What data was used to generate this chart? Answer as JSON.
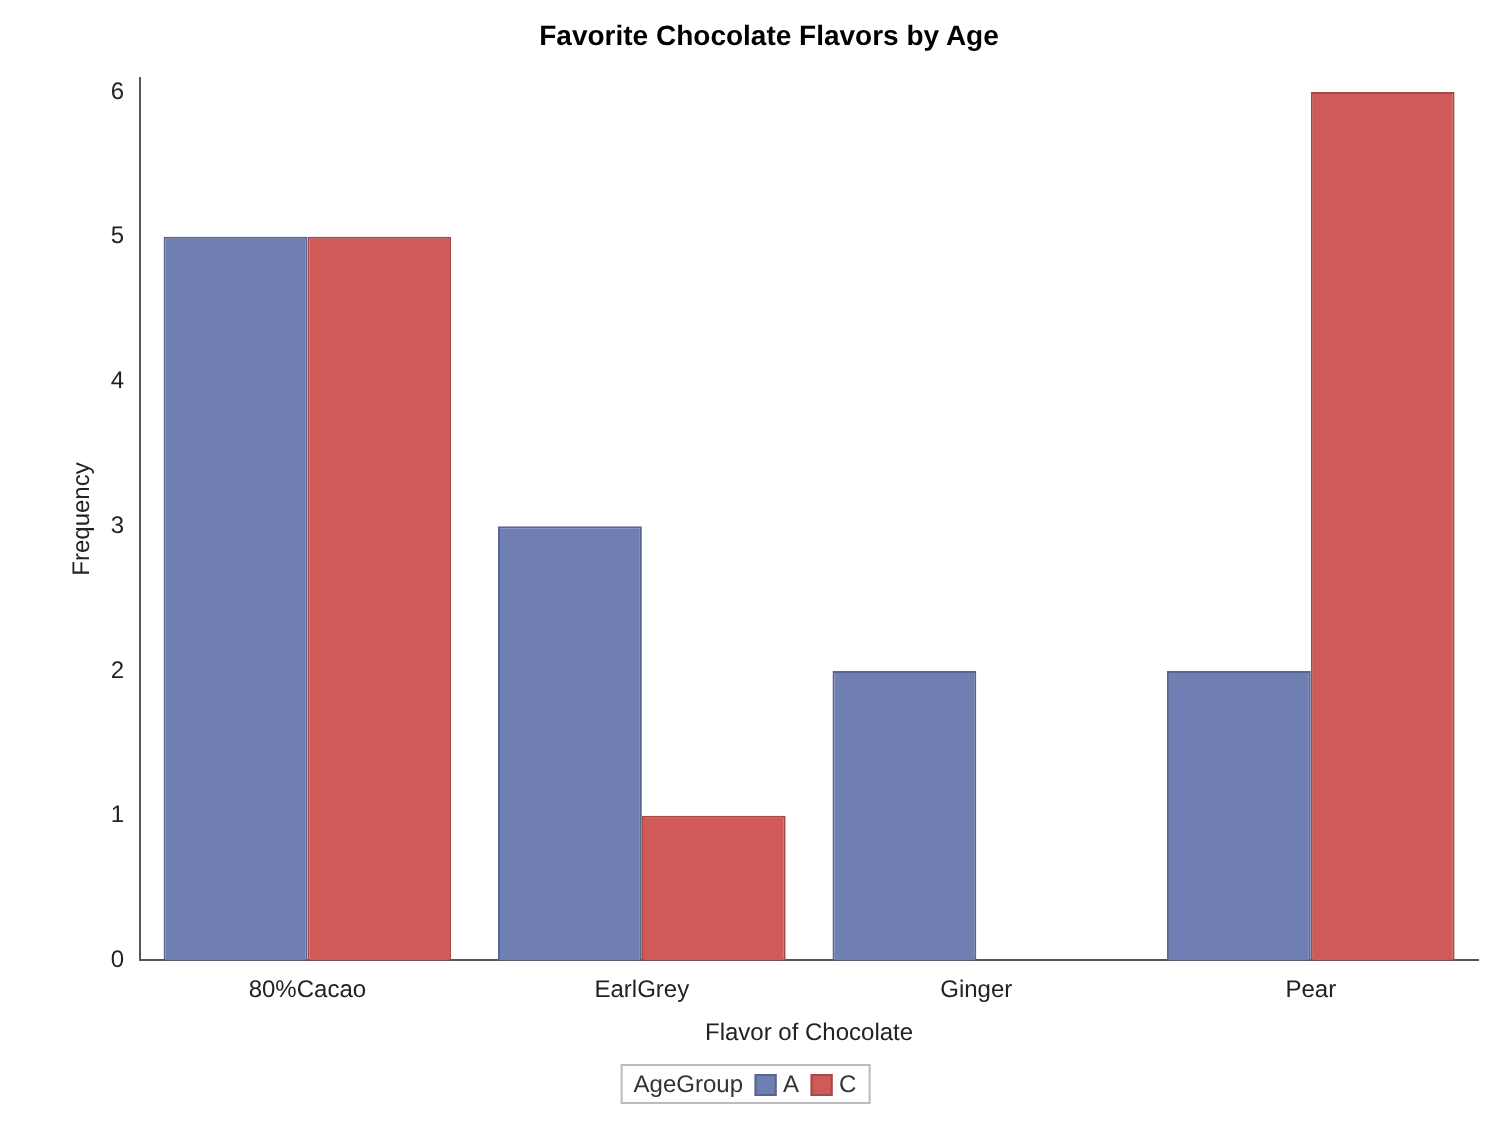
{
  "chart_data": {
    "type": "bar",
    "title": "Favorite Chocolate Flavors by Age",
    "xlabel": "Flavor of Chocolate",
    "ylabel": "Frequency",
    "legend_title": "AgeGroup",
    "categories": [
      "80%Cacao",
      "EarlGrey",
      "Ginger",
      "Pear"
    ],
    "series": [
      {
        "name": "A",
        "color": "#6f7eb3",
        "values": [
          5,
          3,
          2,
          2
        ]
      },
      {
        "name": "C",
        "color": "#d05a57",
        "values": [
          5,
          1,
          null,
          6
        ]
      }
    ],
    "ylim": [
      0,
      6.1
    ],
    "yticks": [
      0,
      1,
      2,
      3,
      4,
      5,
      6
    ],
    "grid": false,
    "legend": "bottom"
  }
}
